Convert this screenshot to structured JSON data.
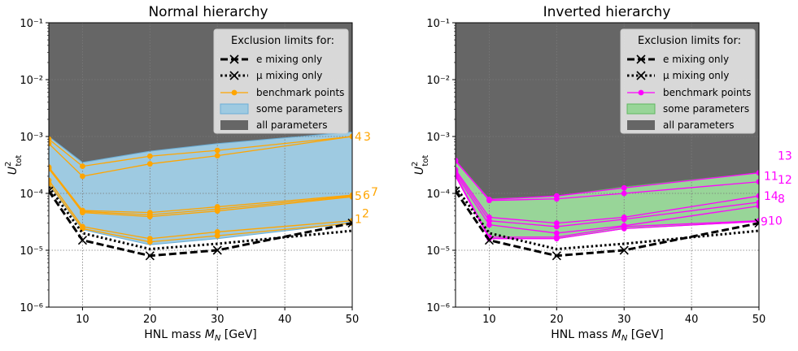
{
  "figure": {
    "xlabel": "HNL mass M_N [GeV]",
    "ylabel": "U²_tot",
    "legend_title": "Exclusion limits for:",
    "legend_items": [
      "e mixing only",
      "μ mixing only",
      "benchmark points",
      "some parameters",
      "all parameters"
    ]
  },
  "chart_data": [
    {
      "type": "line",
      "title": "Normal hierarchy",
      "xlabel": "HNL mass M_N [GeV]",
      "ylabel": "U²_tot",
      "xlim": [
        5,
        50
      ],
      "ylim": [
        1e-06,
        0.1
      ],
      "yscale": "log",
      "xticks": [
        10,
        20,
        30,
        40,
        50
      ],
      "yticks": [
        1e-06,
        1e-05,
        0.0001,
        0.001,
        0.01,
        0.1
      ],
      "ytick_labels": [
        "10⁻⁶",
        "10⁻⁵",
        "10⁻⁴",
        "10⁻³",
        "10⁻²",
        "10⁻¹"
      ],
      "grid": true,
      "legend_position": "top-right",
      "x": [
        5,
        10,
        20,
        30,
        50
      ],
      "colors": {
        "benchmark": "#ffa500",
        "some": "#9ecae1",
        "some_edge": "#6baed6",
        "all": "#666666"
      },
      "all_parameters_boundary": [
        0.001,
        0.00035,
        0.00055,
        0.00075,
        0.0012
      ],
      "some_parameters_lower": [
        0.000145,
        2.3e-05,
        1.25e-05,
        1.6e-05,
        3e-05
      ],
      "series": [
        {
          "name": "e mixing only",
          "style": "dashed",
          "values": [
            0.00011,
            1.5e-05,
            8e-06,
            1e-05,
            3e-05
          ]
        },
        {
          "name": "μ mixing only",
          "style": "dotted",
          "values": [
            0.00013,
            2e-05,
            1.05e-05,
            1.3e-05,
            2.2e-05
          ]
        }
      ],
      "benchmarks": [
        {
          "label": "1",
          "values": [
            0.00015,
            2.4e-05,
            1.4e-05,
            1.8e-05,
            3e-05
          ]
        },
        {
          "label": "2",
          "values": [
            0.00017,
            2.6e-05,
            1.6e-05,
            2.1e-05,
            3.3e-05
          ]
        },
        {
          "label": "3",
          "values": [
            0.0009,
            0.0003,
            0.00045,
            0.00057,
            0.001
          ]
        },
        {
          "label": "4",
          "values": [
            0.00075,
            0.0002,
            0.00033,
            0.00046,
            0.001
          ]
        },
        {
          "label": "5",
          "values": [
            0.00027,
            4.8e-05,
            4.2e-05,
            5.3e-05,
            9e-05
          ]
        },
        {
          "label": "6",
          "values": [
            0.00029,
            5e-05,
            4.6e-05,
            5.8e-05,
            9.3e-05
          ]
        },
        {
          "label": "7",
          "values": [
            0.00028,
            4.6e-05,
            3.9e-05,
            4.9e-05,
            8.7e-05
          ]
        }
      ],
      "benchmark_label_text": [
        "43",
        "567",
        "12"
      ]
    },
    {
      "type": "line",
      "title": "Inverted hierarchy",
      "xlabel": "HNL mass M_N [GeV]",
      "ylabel": "U²_tot",
      "xlim": [
        5,
        50
      ],
      "ylim": [
        1e-06,
        0.1
      ],
      "yscale": "log",
      "xticks": [
        10,
        20,
        30,
        40,
        50
      ],
      "yticks": [
        1e-06,
        1e-05,
        0.0001,
        0.001,
        0.01,
        0.1
      ],
      "ytick_labels": [
        "10⁻⁶",
        "10⁻⁵",
        "10⁻⁴",
        "10⁻³",
        "10⁻²",
        "10⁻¹"
      ],
      "grid": true,
      "legend_position": "top-right",
      "x": [
        5,
        10,
        20,
        30,
        50
      ],
      "colors": {
        "benchmark": "#ff00ff",
        "some": "#98d598",
        "some_edge": "#5fb85f",
        "all": "#666666"
      },
      "all_parameters_boundary": [
        0.00038,
        8e-05,
        9e-05,
        0.00013,
        0.00023
      ],
      "some_parameters_lower": [
        0.0002,
        1.6e-05,
        1.6e-05,
        2.4e-05,
        3.2e-05
      ],
      "series": [
        {
          "name": "e mixing only",
          "style": "dashed",
          "values": [
            0.00011,
            1.5e-05,
            8e-06,
            1e-05,
            3e-05
          ]
        },
        {
          "name": "μ mixing only",
          "style": "dotted",
          "values": [
            0.00013,
            2e-05,
            1.05e-05,
            1.3e-05,
            2.2e-05
          ]
        }
      ],
      "benchmarks": [
        {
          "label": "9",
          "values": [
            0.0002,
            1.6e-05,
            1.6e-05,
            2.4e-05,
            3.2e-05
          ]
        },
        {
          "label": "10",
          "values": [
            0.00021,
            1.7e-05,
            1.7e-05,
            2.6e-05,
            3.3e-05
          ]
        },
        {
          "label": "11",
          "values": [
            0.00038,
            7.5e-05,
            8e-05,
            0.0001,
            0.00016
          ]
        },
        {
          "label": "12",
          "values": [
            0.00026,
            3.8e-05,
            3e-05,
            3.8e-05,
            9e-05
          ]
        },
        {
          "label": "13",
          "values": [
            0.00037,
            7.8e-05,
            9e-05,
            0.000125,
            0.00023
          ]
        },
        {
          "label": "14",
          "values": [
            0.00024,
            3.3e-05,
            2.6e-05,
            3.5e-05,
            7e-05
          ]
        },
        {
          "label": "8",
          "values": [
            0.00022,
            2.8e-05,
            2e-05,
            2.7e-05,
            6e-05
          ]
        }
      ],
      "benchmark_label_text": [
        "11",
        "13",
        "12",
        "14",
        "8",
        "9",
        "10"
      ]
    }
  ]
}
